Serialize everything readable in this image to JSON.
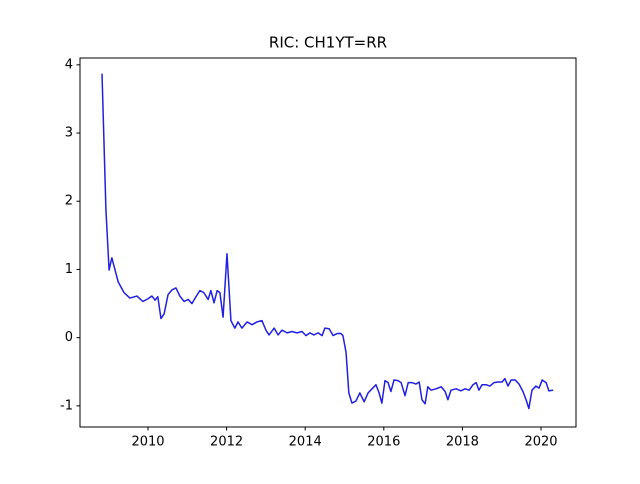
{
  "chart_data": {
    "type": "line",
    "title": "RIC: CH1YT=RR",
    "x": [
      2008.83,
      2008.93,
      2009.01,
      2009.08,
      2009.24,
      2009.39,
      2009.54,
      2009.72,
      2009.87,
      2010.0,
      2010.1,
      2010.18,
      2010.25,
      2010.33,
      2010.41,
      2010.51,
      2010.61,
      2010.71,
      2010.81,
      2010.92,
      2011.02,
      2011.12,
      2011.22,
      2011.32,
      2011.42,
      2011.53,
      2011.6,
      2011.68,
      2011.76,
      2011.83,
      2011.91,
      2012.01,
      2012.11,
      2012.21,
      2012.29,
      2012.39,
      2012.52,
      2012.65,
      2012.77,
      2012.9,
      2013.0,
      2013.08,
      2013.21,
      2013.31,
      2013.41,
      2013.54,
      2013.66,
      2013.79,
      2013.92,
      2014.02,
      2014.12,
      2014.22,
      2014.33,
      2014.43,
      2014.5,
      2014.61,
      2014.71,
      2014.81,
      2014.91,
      2014.96,
      2015.04,
      2015.11,
      2015.19,
      2015.29,
      2015.39,
      2015.5,
      2015.6,
      2015.7,
      2015.8,
      2015.88,
      2015.95,
      2016.03,
      2016.11,
      2016.18,
      2016.26,
      2016.36,
      2016.44,
      2016.54,
      2016.62,
      2016.72,
      2016.82,
      2016.9,
      2016.97,
      2017.05,
      2017.12,
      2017.2,
      2017.33,
      2017.46,
      2017.56,
      2017.63,
      2017.71,
      2017.84,
      2017.96,
      2018.07,
      2018.17,
      2018.27,
      2018.35,
      2018.42,
      2018.5,
      2018.6,
      2018.7,
      2018.8,
      2018.91,
      2019.01,
      2019.08,
      2019.16,
      2019.24,
      2019.34,
      2019.44,
      2019.54,
      2019.62,
      2019.69,
      2019.77,
      2019.87,
      2019.95,
      2020.03,
      2020.13,
      2020.2,
      2020.31
    ],
    "series": [
      {
        "name": "CH1YT=RR",
        "color": "#2020e0",
        "values": [
          3.87,
          1.87,
          0.99,
          1.17,
          0.82,
          0.66,
          0.58,
          0.61,
          0.53,
          0.57,
          0.61,
          0.55,
          0.6,
          0.28,
          0.35,
          0.63,
          0.7,
          0.73,
          0.61,
          0.53,
          0.56,
          0.5,
          0.6,
          0.69,
          0.66,
          0.56,
          0.69,
          0.51,
          0.69,
          0.66,
          0.3,
          1.23,
          0.25,
          0.14,
          0.23,
          0.14,
          0.23,
          0.19,
          0.23,
          0.25,
          0.11,
          0.04,
          0.14,
          0.04,
          0.11,
          0.07,
          0.09,
          0.07,
          0.09,
          0.03,
          0.07,
          0.04,
          0.07,
          0.03,
          0.14,
          0.13,
          0.03,
          0.06,
          0.06,
          0.03,
          -0.22,
          -0.81,
          -0.96,
          -0.93,
          -0.81,
          -0.94,
          -0.81,
          -0.75,
          -0.69,
          -0.81,
          -0.96,
          -0.63,
          -0.66,
          -0.79,
          -0.62,
          -0.63,
          -0.66,
          -0.85,
          -0.66,
          -0.66,
          -0.68,
          -0.65,
          -0.91,
          -0.97,
          -0.72,
          -0.77,
          -0.75,
          -0.72,
          -0.79,
          -0.91,
          -0.77,
          -0.75,
          -0.78,
          -0.75,
          -0.77,
          -0.69,
          -0.66,
          -0.77,
          -0.69,
          -0.69,
          -0.71,
          -0.66,
          -0.65,
          -0.65,
          -0.6,
          -0.71,
          -0.62,
          -0.62,
          -0.68,
          -0.79,
          -0.91,
          -1.04,
          -0.77,
          -0.71,
          -0.74,
          -0.62,
          -0.66,
          -0.78,
          -0.77
        ]
      }
    ],
    "xlim": [
      2008.27,
      2020.89
    ],
    "xticks": [
      2010,
      2012,
      2014,
      2016,
      2018,
      2020
    ],
    "ylim": [
      -1.31,
      4.1
    ],
    "yticks": [
      -1,
      0,
      1,
      2,
      3,
      4
    ]
  }
}
